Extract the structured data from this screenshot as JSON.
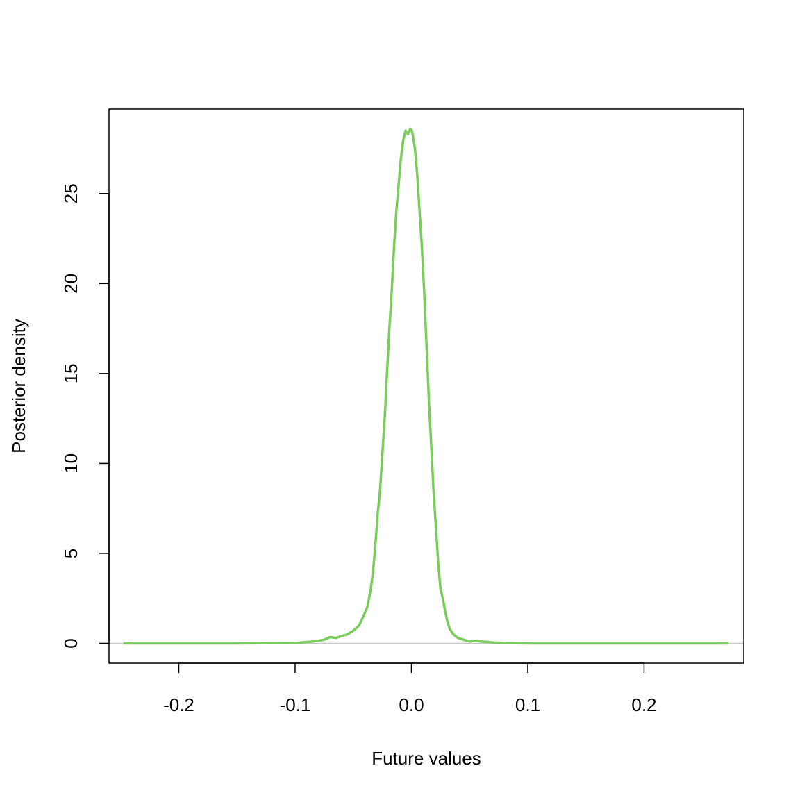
{
  "chart_data": {
    "type": "line",
    "title": "",
    "xlabel": "Future values",
    "ylabel": "Posterior density",
    "xlim": [
      -0.26,
      0.2857
    ],
    "ylim": [
      -1.1,
      29.7
    ],
    "xticks": [
      -0.2,
      -0.1,
      0.0,
      0.1,
      0.2
    ],
    "xtick_labels": [
      "-0.2",
      "-0.1",
      "0.0",
      "0.1",
      "0.2"
    ],
    "yticks": [
      0,
      5,
      10,
      15,
      20,
      25
    ],
    "ytick_labels": [
      "0",
      "5",
      "10",
      "15",
      "20",
      "25"
    ],
    "grid": false,
    "baseline": 0,
    "colors": {
      "line": "#7ACC5C",
      "baseline": "#C8C8C8",
      "frame": "#000000"
    },
    "series": [
      {
        "x": [
          -0.2475,
          -0.15,
          -0.1,
          -0.095,
          -0.085,
          -0.075,
          -0.07,
          -0.065,
          -0.06,
          -0.055,
          -0.05,
          -0.045,
          -0.042,
          -0.038,
          -0.035,
          -0.033,
          -0.031,
          -0.029,
          -0.027,
          -0.025,
          -0.023,
          -0.021,
          -0.019,
          -0.017,
          -0.015,
          -0.013,
          -0.011,
          -0.009,
          -0.007,
          -0.005,
          -0.003,
          -0.001,
          0.0,
          0.001,
          0.003,
          0.005,
          0.007,
          0.009,
          0.011,
          0.013,
          0.015,
          0.017,
          0.019,
          0.021,
          0.023,
          0.025,
          0.027,
          0.029,
          0.031,
          0.033,
          0.036,
          0.04,
          0.045,
          0.05,
          0.055,
          0.06,
          0.065,
          0.07,
          0.08,
          0.09,
          0.1,
          0.15,
          0.2,
          0.2725
        ],
        "y": [
          0.0,
          0.0,
          0.02,
          0.05,
          0.1,
          0.2,
          0.35,
          0.3,
          0.4,
          0.5,
          0.7,
          1.0,
          1.4,
          2.0,
          3.0,
          4.0,
          5.5,
          7.2,
          8.5,
          10.5,
          12.5,
          15.0,
          17.5,
          19.5,
          22.0,
          24.0,
          25.5,
          27.0,
          28.0,
          28.5,
          28.3,
          28.6,
          28.55,
          28.3,
          27.5,
          26.0,
          24.0,
          22.0,
          19.5,
          16.5,
          13.5,
          11.0,
          8.5,
          6.5,
          4.5,
          3.0,
          2.5,
          1.8,
          1.2,
          0.8,
          0.5,
          0.3,
          0.2,
          0.1,
          0.15,
          0.1,
          0.08,
          0.05,
          0.02,
          0.01,
          0.0,
          0.0,
          0.0,
          0.0
        ]
      }
    ]
  }
}
